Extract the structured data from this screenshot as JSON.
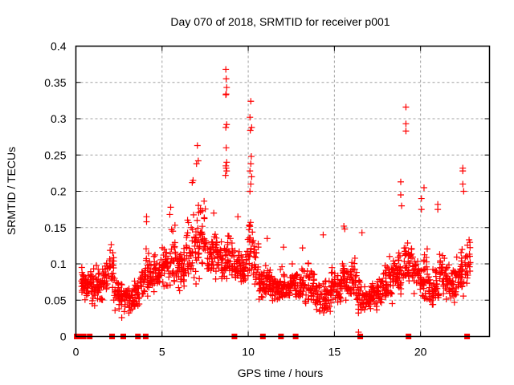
{
  "chart_data": {
    "type": "scatter",
    "title": "Day 070 of 2018, SRMTID for receiver p001",
    "xlabel": "GPS time / hours",
    "ylabel": "SRMTID / TECUs",
    "xlim": [
      0,
      24
    ],
    "ylim": [
      0,
      0.4
    ],
    "grid": true,
    "legend": "none",
    "marker": "plus",
    "color": "#ff0000",
    "xticks": [
      {
        "value": 0,
        "label": "0"
      },
      {
        "value": 5,
        "label": "5"
      },
      {
        "value": 10,
        "label": "10"
      },
      {
        "value": 15,
        "label": "15"
      },
      {
        "value": 20,
        "label": "20"
      }
    ],
    "yticks": [
      {
        "value": 0,
        "label": "0"
      },
      {
        "value": 0.05,
        "label": "0.05"
      },
      {
        "value": 0.1,
        "label": "0.1"
      },
      {
        "value": 0.15,
        "label": "0.15"
      },
      {
        "value": 0.2,
        "label": "0.2"
      },
      {
        "value": 0.25,
        "label": "0.25"
      },
      {
        "value": 0.3,
        "label": "0.3"
      },
      {
        "value": 0.35,
        "label": "0.35"
      },
      {
        "value": 0.4,
        "label": "0.4"
      }
    ],
    "zero_points_x": [
      0.05,
      0.15,
      0.25,
      0.35,
      0.45,
      0.8,
      2.1,
      2.75,
      3.6,
      4.05,
      9.2,
      10.85,
      11.9,
      12.75,
      16.5,
      19.3,
      22.7
    ],
    "series": [
      {
        "name": "SRMTID",
        "envelope": [
          [
            0.3,
            0.045,
            0.105
          ],
          [
            0.5,
            0.045,
            0.09
          ],
          [
            0.8,
            0.035,
            0.1
          ],
          [
            1.0,
            0.03,
            0.11
          ],
          [
            1.3,
            0.04,
            0.105
          ],
          [
            1.6,
            0.05,
            0.12
          ],
          [
            1.9,
            0.05,
            0.135
          ],
          [
            2.2,
            0.03,
            0.09
          ],
          [
            2.5,
            0.02,
            0.095
          ],
          [
            2.8,
            0.025,
            0.085
          ],
          [
            3.1,
            0.02,
            0.075
          ],
          [
            3.4,
            0.03,
            0.09
          ],
          [
            3.7,
            0.045,
            0.105
          ],
          [
            4.0,
            0.05,
            0.13
          ],
          [
            4.3,
            0.055,
            0.125
          ],
          [
            4.6,
            0.06,
            0.11
          ],
          [
            4.9,
            0.06,
            0.135
          ],
          [
            5.2,
            0.06,
            0.135
          ],
          [
            5.5,
            0.06,
            0.165
          ],
          [
            5.8,
            0.05,
            0.14
          ],
          [
            6.1,
            0.05,
            0.13
          ],
          [
            6.4,
            0.06,
            0.175
          ],
          [
            6.7,
            0.05,
            0.21
          ],
          [
            7.0,
            0.06,
            0.2
          ],
          [
            7.3,
            0.07,
            0.195
          ],
          [
            7.6,
            0.07,
            0.15
          ],
          [
            7.9,
            0.06,
            0.16
          ],
          [
            8.2,
            0.06,
            0.14
          ],
          [
            8.5,
            0.06,
            0.145
          ],
          [
            8.8,
            0.06,
            0.15
          ],
          [
            9.1,
            0.06,
            0.13
          ],
          [
            9.4,
            0.05,
            0.13
          ],
          [
            9.7,
            0.05,
            0.15
          ],
          [
            10.0,
            0.05,
            0.19
          ],
          [
            10.3,
            0.05,
            0.16
          ],
          [
            10.6,
            0.04,
            0.1
          ],
          [
            10.9,
            0.04,
            0.11
          ],
          [
            11.2,
            0.04,
            0.1
          ],
          [
            11.5,
            0.04,
            0.09
          ],
          [
            11.8,
            0.04,
            0.1
          ],
          [
            12.1,
            0.04,
            0.09
          ],
          [
            12.4,
            0.04,
            0.105
          ],
          [
            12.7,
            0.04,
            0.1
          ],
          [
            13.0,
            0.04,
            0.11
          ],
          [
            13.3,
            0.035,
            0.11
          ],
          [
            13.6,
            0.03,
            0.1
          ],
          [
            13.9,
            0.02,
            0.095
          ],
          [
            14.2,
            0.015,
            0.09
          ],
          [
            14.5,
            0.02,
            0.1
          ],
          [
            14.8,
            0.03,
            0.12
          ],
          [
            15.1,
            0.03,
            0.105
          ],
          [
            15.4,
            0.04,
            0.11
          ],
          [
            15.7,
            0.035,
            0.115
          ],
          [
            16.0,
            0.03,
            0.13
          ],
          [
            16.3,
            0.02,
            0.09
          ],
          [
            16.6,
            0.025,
            0.075
          ],
          [
            16.9,
            0.025,
            0.085
          ],
          [
            17.2,
            0.03,
            0.09
          ],
          [
            17.5,
            0.03,
            0.095
          ],
          [
            17.8,
            0.03,
            0.105
          ],
          [
            18.1,
            0.04,
            0.12
          ],
          [
            18.4,
            0.04,
            0.13
          ],
          [
            18.7,
            0.04,
            0.14
          ],
          [
            19.0,
            0.06,
            0.15
          ],
          [
            19.3,
            0.06,
            0.14
          ],
          [
            19.6,
            0.05,
            0.12
          ],
          [
            19.9,
            0.04,
            0.11
          ],
          [
            20.2,
            0.04,
            0.13
          ],
          [
            20.5,
            0.03,
            0.1
          ],
          [
            20.8,
            0.03,
            0.1
          ],
          [
            21.1,
            0.04,
            0.13
          ],
          [
            21.4,
            0.04,
            0.12
          ],
          [
            21.7,
            0.03,
            0.11
          ],
          [
            22.0,
            0.04,
            0.12
          ],
          [
            22.3,
            0.05,
            0.14
          ],
          [
            22.6,
            0.06,
            0.15
          ]
        ],
        "peaks": [
          [
            8.7,
            0.368
          ],
          [
            8.72,
            0.355
          ],
          [
            8.75,
            0.343
          ],
          [
            8.7,
            0.333
          ],
          [
            8.72,
            0.334
          ],
          [
            8.75,
            0.292
          ],
          [
            8.7,
            0.288
          ],
          [
            8.72,
            0.26
          ],
          [
            8.75,
            0.24
          ],
          [
            8.7,
            0.235
          ],
          [
            8.72,
            0.232
          ],
          [
            8.75,
            0.228
          ],
          [
            8.68,
            0.222
          ],
          [
            10.15,
            0.324
          ],
          [
            10.1,
            0.302
          ],
          [
            10.2,
            0.288
          ],
          [
            10.12,
            0.284
          ],
          [
            10.18,
            0.248
          ],
          [
            10.15,
            0.238
          ],
          [
            10.1,
            0.228
          ],
          [
            10.2,
            0.22
          ],
          [
            10.15,
            0.21
          ],
          [
            10.1,
            0.2
          ],
          [
            7.05,
            0.263
          ],
          [
            7.1,
            0.242
          ],
          [
            7.0,
            0.238
          ],
          [
            6.8,
            0.215
          ],
          [
            6.75,
            0.212
          ],
          [
            19.15,
            0.316
          ],
          [
            19.15,
            0.293
          ],
          [
            19.15,
            0.283
          ],
          [
            18.85,
            0.213
          ],
          [
            18.85,
            0.195
          ],
          [
            20.2,
            0.205
          ],
          [
            22.45,
            0.232
          ],
          [
            22.45,
            0.228
          ],
          [
            22.45,
            0.21
          ],
          [
            22.5,
            0.2
          ],
          [
            21.0,
            0.182
          ],
          [
            21.0,
            0.175
          ],
          [
            20.05,
            0.19
          ],
          [
            20.05,
            0.175
          ],
          [
            18.9,
            0.18
          ],
          [
            5.5,
            0.178
          ],
          [
            5.45,
            0.168
          ],
          [
            4.1,
            0.165
          ],
          [
            4.1,
            0.158
          ],
          [
            8.0,
            0.17
          ],
          [
            9.4,
            0.165
          ],
          [
            15.55,
            0.152
          ],
          [
            15.6,
            0.148
          ],
          [
            16.6,
            0.143
          ],
          [
            14.35,
            0.14
          ],
          [
            11.1,
            0.135
          ],
          [
            12.05,
            0.123
          ],
          [
            13.15,
            0.122
          ],
          [
            16.4,
            0.006
          ]
        ]
      }
    ]
  }
}
